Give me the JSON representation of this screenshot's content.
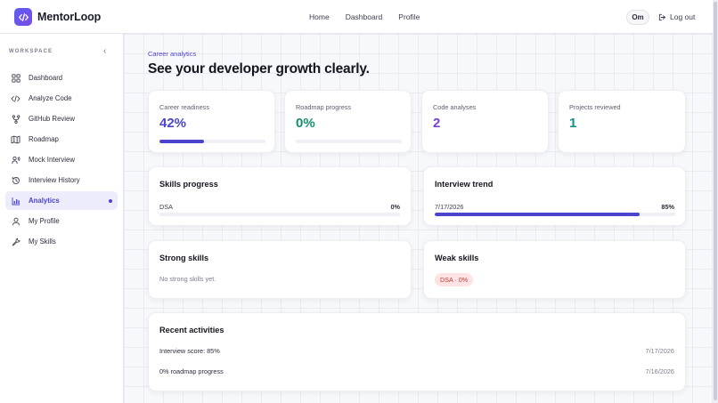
{
  "brand": {
    "name": "MentorLoop"
  },
  "topnav": {
    "items": [
      "Home",
      "Dashboard",
      "Profile"
    ]
  },
  "user": {
    "initials": "Om",
    "logout_label": "Log out"
  },
  "sidebar": {
    "section_label": "WORKSPACE",
    "items": [
      {
        "label": "Dashboard",
        "icon": "grid-icon",
        "active": false
      },
      {
        "label": "Analyze Code",
        "icon": "code-icon",
        "active": false
      },
      {
        "label": "GitHub Review",
        "icon": "git-branch-icon",
        "active": false
      },
      {
        "label": "Roadmap",
        "icon": "map-icon",
        "active": false
      },
      {
        "label": "Mock Interview",
        "icon": "interview-icon",
        "active": false
      },
      {
        "label": "Interview History",
        "icon": "history-icon",
        "active": false
      },
      {
        "label": "Analytics",
        "icon": "bar-chart-icon",
        "active": true
      },
      {
        "label": "My Profile",
        "icon": "user-icon",
        "active": false
      },
      {
        "label": "My Skills",
        "icon": "wrench-icon",
        "active": false
      }
    ]
  },
  "page": {
    "eyebrow": "Career analytics",
    "title": "See your developer growth clearly."
  },
  "stats": [
    {
      "label": "Career readiness",
      "value": "42%",
      "progress": 0.42,
      "color": "#4b44cf"
    },
    {
      "label": "Roadmap progress",
      "value": "0%",
      "progress": 0.0,
      "color": "#12906d"
    },
    {
      "label": "Code analyses",
      "value": "2",
      "color": "#7a3fd6"
    },
    {
      "label": "Projects reviewed",
      "value": "1",
      "color": "#138c8c"
    }
  ],
  "skills_progress": {
    "title": "Skills progress",
    "rows": [
      {
        "label": "DSA",
        "value": "0%",
        "progress": 0.0
      }
    ]
  },
  "interview_trend": {
    "title": "Interview trend",
    "rows": [
      {
        "label": "7/17/2026",
        "value": "85%",
        "progress": 0.85
      }
    ]
  },
  "strong_skills": {
    "title": "Strong skills",
    "empty_text": "No strong skills yet."
  },
  "weak_skills": {
    "title": "Weak skills",
    "chips": [
      "DSA · 0%"
    ]
  },
  "recent_activities": {
    "title": "Recent activities",
    "items": [
      {
        "label": "Interview score: 85%",
        "date": "7/17/2026"
      },
      {
        "label": "0% roadmap progress",
        "date": "7/16/2026"
      }
    ]
  },
  "colors": {
    "accent": "#4b44cf",
    "active_bg": "#ececfd",
    "weak_chip_bg": "#fde3e3",
    "weak_chip_text": "#c23a3a"
  }
}
